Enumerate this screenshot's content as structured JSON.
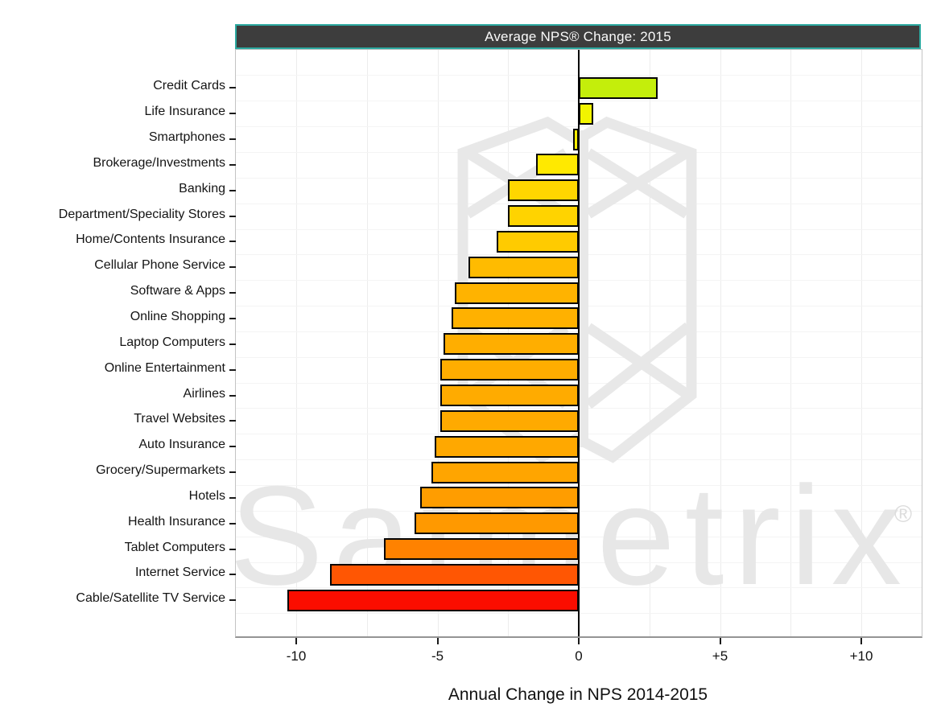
{
  "watermark": {
    "text": "Satmetrix",
    "registered": "®"
  },
  "style_colors": {
    "title_bg": "#3d3d3d",
    "title_border": "#2ca9a0",
    "title_text": "#fafafa",
    "axis_line": "#000000",
    "bar_border": "#050505",
    "watermark_gray": "#e7e7e7",
    "gridline": "#ececec"
  },
  "chart_data": {
    "type": "bar",
    "orientation": "horizontal",
    "title": "Average NPS® Change: 2015",
    "xlabel": "Annual Change in NPS 2014-2015",
    "xlim": [
      -12.15,
      12.15
    ],
    "grid_step": 2.5,
    "legend": "none",
    "x_ticks": [
      {
        "value": -10,
        "label": "-10"
      },
      {
        "value": -5,
        "label": "-5"
      },
      {
        "value": 0,
        "label": "0"
      },
      {
        "value": 5,
        "label": "+5"
      },
      {
        "value": 10,
        "label": "+10"
      }
    ],
    "categories": [
      "Credit Cards",
      "Life Insurance",
      "Smartphones",
      "Brokerage/Investments",
      "Banking",
      "Department/Speciality Stores",
      "Home/Contents Insurance",
      "Cellular Phone Service",
      "Software & Apps",
      "Online Shopping",
      "Laptop Computers",
      "Online Entertainment",
      "Airlines",
      "Travel Websites",
      "Auto Insurance",
      "Grocery/Supermarkets",
      "Hotels",
      "Health Insurance",
      "Tablet Computers",
      "Internet Service",
      "Cable/Satellite TV Service"
    ],
    "values": [
      2.8,
      0.5,
      -0.2,
      -1.5,
      -2.5,
      -2.5,
      -2.9,
      -3.9,
      -4.4,
      -4.5,
      -4.8,
      -4.9,
      -4.9,
      -4.9,
      -5.1,
      -5.2,
      -5.6,
      -5.8,
      -6.9,
      -8.8,
      -10.3
    ],
    "bar_colors": [
      "#c4ee0b",
      "#f2f400",
      "#fdee00",
      "#ffe900",
      "#ffd600",
      "#ffd300",
      "#ffcb00",
      "#ffbb00",
      "#ffb300",
      "#ffb100",
      "#ffae00",
      "#ffad00",
      "#ffab00",
      "#ffaa00",
      "#ffa800",
      "#ffa500",
      "#ff9d00",
      "#ff9900",
      "#ff8200",
      "#ff5603",
      "#fb0d00"
    ]
  }
}
